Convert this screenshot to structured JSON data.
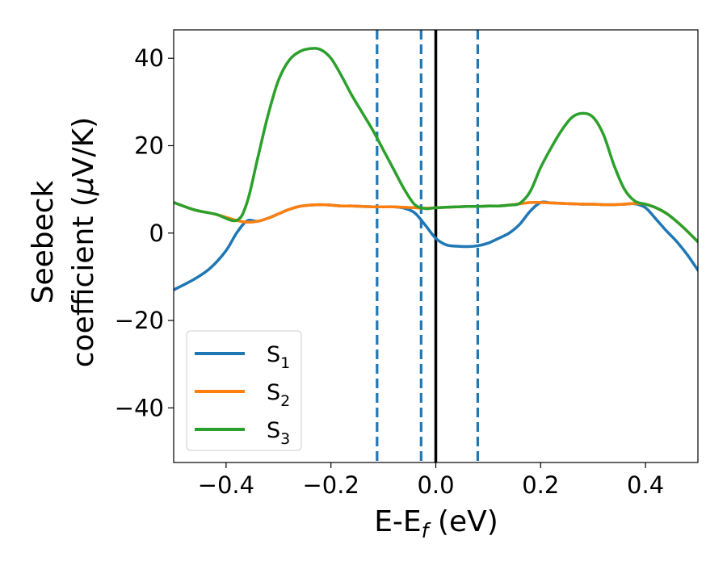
{
  "chart_data": {
    "type": "line",
    "title": "",
    "xlabel": {
      "base": "E-E",
      "sub": "f",
      "suffix": " (eV)"
    },
    "ylabel": {
      "line1": "Seebeck",
      "line2_prefix": "coefficient  (",
      "mu": "μ",
      "line2_suffix": "V/K)"
    },
    "xlim": [
      -0.5,
      0.5
    ],
    "ylim": [
      -52.5,
      46.5
    ],
    "xticks": [
      -0.4,
      -0.2,
      0.0,
      0.2,
      0.4
    ],
    "xtick_labels": [
      "−0.4",
      "−0.2",
      "0.0",
      "0.2",
      "0.4"
    ],
    "yticks": [
      -40,
      -20,
      0,
      20,
      40
    ],
    "ytick_labels": [
      "−40",
      "−20",
      "0",
      "20",
      "40"
    ],
    "grid": false,
    "legend": "lower-left",
    "vertical_lines": [
      {
        "x": -0.112,
        "style": "dashed",
        "color": "#1f77b4"
      },
      {
        "x": -0.028,
        "style": "dashed",
        "color": "#1f77b4"
      },
      {
        "x": 0.0,
        "style": "solid",
        "color": "#000000"
      },
      {
        "x": 0.08,
        "style": "dashed",
        "color": "#1f77b4"
      }
    ],
    "series": [
      {
        "name": "S",
        "sub": "1",
        "color": "#1f77b4",
        "points": [
          [
            -0.5,
            -13
          ],
          [
            -0.46,
            -10.5
          ],
          [
            -0.43,
            -8
          ],
          [
            -0.4,
            -4
          ],
          [
            -0.38,
            0
          ],
          [
            -0.36,
            2.8
          ],
          [
            -0.34,
            2.7
          ],
          [
            -0.32,
            3.4
          ],
          [
            -0.3,
            4.4
          ],
          [
            -0.28,
            5.4
          ],
          [
            -0.26,
            6.1
          ],
          [
            -0.24,
            6.4
          ],
          [
            -0.22,
            6.5
          ],
          [
            -0.2,
            6.4
          ],
          [
            -0.18,
            6.2
          ],
          [
            -0.16,
            6.2
          ],
          [
            -0.14,
            6.1
          ],
          [
            -0.12,
            6.0
          ],
          [
            -0.1,
            6.0
          ],
          [
            -0.08,
            6.0
          ],
          [
            -0.06,
            5.7
          ],
          [
            -0.04,
            4.6
          ],
          [
            -0.02,
            1.8
          ],
          [
            0.0,
            -1.2
          ],
          [
            0.02,
            -2.7
          ],
          [
            0.04,
            -3.0
          ],
          [
            0.06,
            -3.1
          ],
          [
            0.08,
            -2.9
          ],
          [
            0.1,
            -2.3
          ],
          [
            0.12,
            -1.2
          ],
          [
            0.14,
            0.0
          ],
          [
            0.16,
            2.0
          ],
          [
            0.18,
            5.0
          ],
          [
            0.2,
            7.0
          ],
          [
            0.22,
            6.9
          ],
          [
            0.24,
            6.8
          ],
          [
            0.26,
            6.7
          ],
          [
            0.28,
            6.6
          ],
          [
            0.3,
            6.6
          ],
          [
            0.32,
            6.5
          ],
          [
            0.34,
            6.5
          ],
          [
            0.36,
            6.6
          ],
          [
            0.38,
            6.7
          ],
          [
            0.4,
            5.8
          ],
          [
            0.42,
            3.2
          ],
          [
            0.44,
            0.5
          ],
          [
            0.46,
            -2.0
          ],
          [
            0.48,
            -5.0
          ],
          [
            0.5,
            -8.5
          ]
        ]
      },
      {
        "name": "S",
        "sub": "2",
        "color": "#ff7f0e",
        "points": [
          [
            -0.5,
            7.0
          ],
          [
            -0.46,
            5.3
          ],
          [
            -0.42,
            4.3
          ],
          [
            -0.38,
            2.9
          ],
          [
            -0.36,
            2.5
          ],
          [
            -0.34,
            2.7
          ],
          [
            -0.32,
            3.4
          ],
          [
            -0.3,
            4.4
          ],
          [
            -0.28,
            5.4
          ],
          [
            -0.26,
            6.1
          ],
          [
            -0.24,
            6.4
          ],
          [
            -0.22,
            6.5
          ],
          [
            -0.2,
            6.4
          ],
          [
            -0.18,
            6.2
          ],
          [
            -0.16,
            6.2
          ],
          [
            -0.14,
            6.1
          ],
          [
            -0.12,
            6.0
          ],
          [
            -0.1,
            6.0
          ],
          [
            -0.08,
            6.0
          ],
          [
            -0.06,
            5.9
          ],
          [
            -0.04,
            5.8
          ],
          [
            -0.02,
            5.7
          ],
          [
            0.0,
            5.8
          ],
          [
            0.02,
            5.9
          ],
          [
            0.04,
            6.0
          ],
          [
            0.06,
            6.1
          ],
          [
            0.08,
            6.1
          ],
          [
            0.1,
            6.2
          ],
          [
            0.12,
            6.2
          ],
          [
            0.14,
            6.4
          ],
          [
            0.16,
            6.7
          ],
          [
            0.18,
            7.0
          ],
          [
            0.2,
            7.0
          ],
          [
            0.22,
            6.9
          ],
          [
            0.24,
            6.8
          ],
          [
            0.26,
            6.7
          ],
          [
            0.28,
            6.6
          ],
          [
            0.3,
            6.6
          ],
          [
            0.32,
            6.5
          ],
          [
            0.34,
            6.5
          ],
          [
            0.36,
            6.6
          ],
          [
            0.38,
            6.8
          ],
          [
            0.4,
            6.6
          ],
          [
            0.42,
            5.8
          ],
          [
            0.44,
            4.5
          ],
          [
            0.46,
            2.6
          ],
          [
            0.48,
            0.4
          ],
          [
            0.5,
            -2.0
          ]
        ]
      },
      {
        "name": "S",
        "sub": "3",
        "color": "#2ca02c",
        "points": [
          [
            -0.5,
            7.0
          ],
          [
            -0.46,
            5.3
          ],
          [
            -0.42,
            4.3
          ],
          [
            -0.38,
            2.9
          ],
          [
            -0.36,
            7.0
          ],
          [
            -0.34,
            17.0
          ],
          [
            -0.32,
            27.0
          ],
          [
            -0.3,
            35.0
          ],
          [
            -0.28,
            39.5
          ],
          [
            -0.26,
            41.5
          ],
          [
            -0.24,
            42.2
          ],
          [
            -0.22,
            42.0
          ],
          [
            -0.2,
            40.0
          ],
          [
            -0.18,
            36.0
          ],
          [
            -0.16,
            31.5
          ],
          [
            -0.14,
            27.5
          ],
          [
            -0.12,
            23.5
          ],
          [
            -0.1,
            19.0
          ],
          [
            -0.08,
            14.5
          ],
          [
            -0.06,
            10.0
          ],
          [
            -0.04,
            6.5
          ],
          [
            -0.02,
            5.6
          ],
          [
            0.0,
            5.8
          ],
          [
            0.02,
            5.9
          ],
          [
            0.04,
            6.0
          ],
          [
            0.06,
            6.1
          ],
          [
            0.08,
            6.1
          ],
          [
            0.1,
            6.2
          ],
          [
            0.12,
            6.2
          ],
          [
            0.14,
            6.4
          ],
          [
            0.16,
            6.8
          ],
          [
            0.18,
            9.5
          ],
          [
            0.2,
            15.0
          ],
          [
            0.22,
            19.5
          ],
          [
            0.24,
            23.5
          ],
          [
            0.26,
            26.5
          ],
          [
            0.28,
            27.4
          ],
          [
            0.3,
            26.5
          ],
          [
            0.32,
            22.5
          ],
          [
            0.34,
            15.5
          ],
          [
            0.36,
            10.0
          ],
          [
            0.38,
            7.3
          ],
          [
            0.4,
            6.6
          ],
          [
            0.42,
            5.8
          ],
          [
            0.44,
            4.5
          ],
          [
            0.46,
            2.6
          ],
          [
            0.48,
            0.4
          ],
          [
            0.5,
            -2.0
          ]
        ]
      }
    ]
  }
}
